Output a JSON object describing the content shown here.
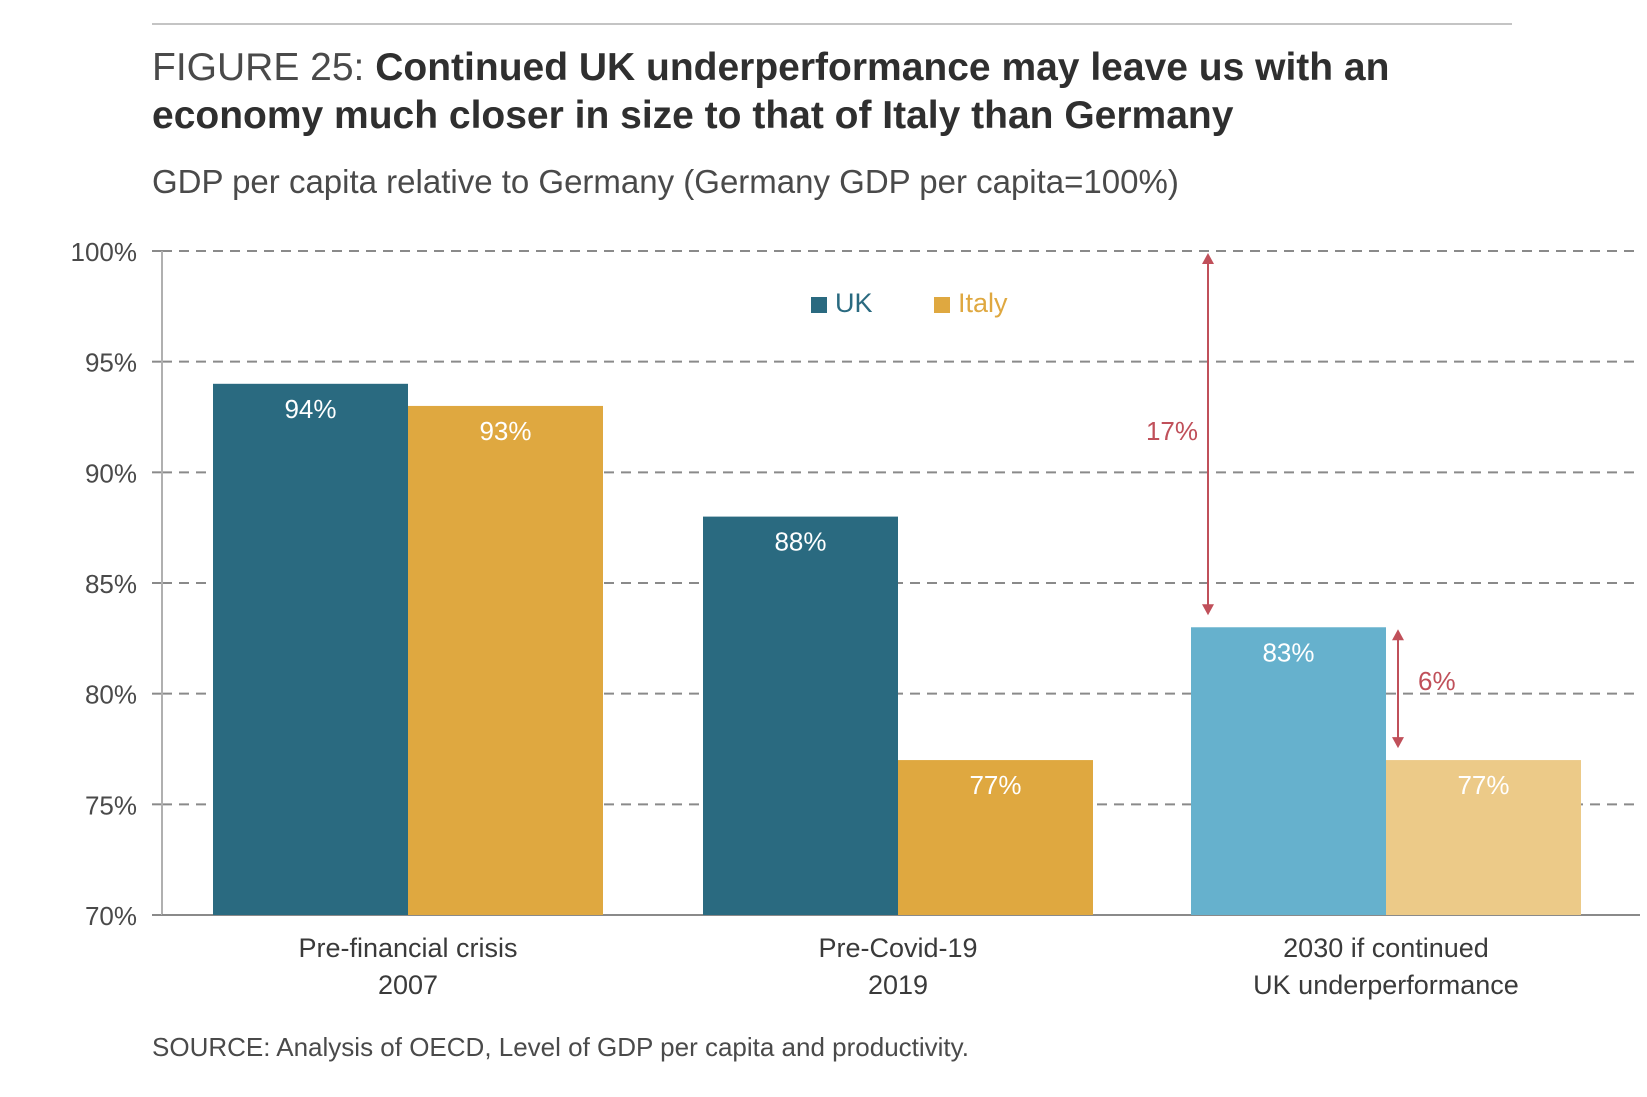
{
  "header": {
    "figure_label": "FIGURE 25:",
    "title": "Continued UK underperformance may leave us with an economy much closer in size to that of Italy than Germany",
    "subtitle": "GDP per capita relative to Germany (Germany GDP per capita=100%)"
  },
  "source": "SOURCE: Analysis of OECD, Level of GDP per capita and productivity.",
  "chart_data": {
    "type": "bar",
    "categories": [
      [
        "Pre-financial crisis",
        "2007"
      ],
      [
        "Pre-Covid-19",
        "2019"
      ],
      [
        "2030 if continued",
        "UK underperformance"
      ]
    ],
    "series": [
      {
        "name": "UK",
        "values": [
          94,
          88,
          83
        ],
        "labels": [
          "94%",
          "88%",
          "83%"
        ],
        "colors": [
          "#2a6a80",
          "#2a6a80",
          "#66b1cd"
        ]
      },
      {
        "name": "Italy",
        "values": [
          93,
          77,
          77
        ],
        "labels": [
          "93%",
          "77%",
          "77%"
        ],
        "colors": [
          "#dfa840",
          "#dfa840",
          "#ecca88"
        ]
      }
    ],
    "ylim": [
      70,
      100
    ],
    "yticks": [
      70,
      75,
      80,
      85,
      90,
      95,
      100
    ],
    "ytick_labels": [
      "70%",
      "75%",
      "80%",
      "85%",
      "90%",
      "95%",
      "100%"
    ],
    "grid": "dashed horizontal",
    "legend": {
      "placement": "top-center",
      "items": [
        "UK",
        "Italy"
      ],
      "colors": [
        "#2a6a80",
        "#dfa840"
      ]
    },
    "annotations": [
      {
        "label": "17%",
        "category": 2,
        "from": 100,
        "to": 83,
        "color": "#c0505a"
      },
      {
        "label": "6%",
        "category": 2,
        "from": 83,
        "to": 77,
        "color": "#c0505a"
      }
    ]
  }
}
